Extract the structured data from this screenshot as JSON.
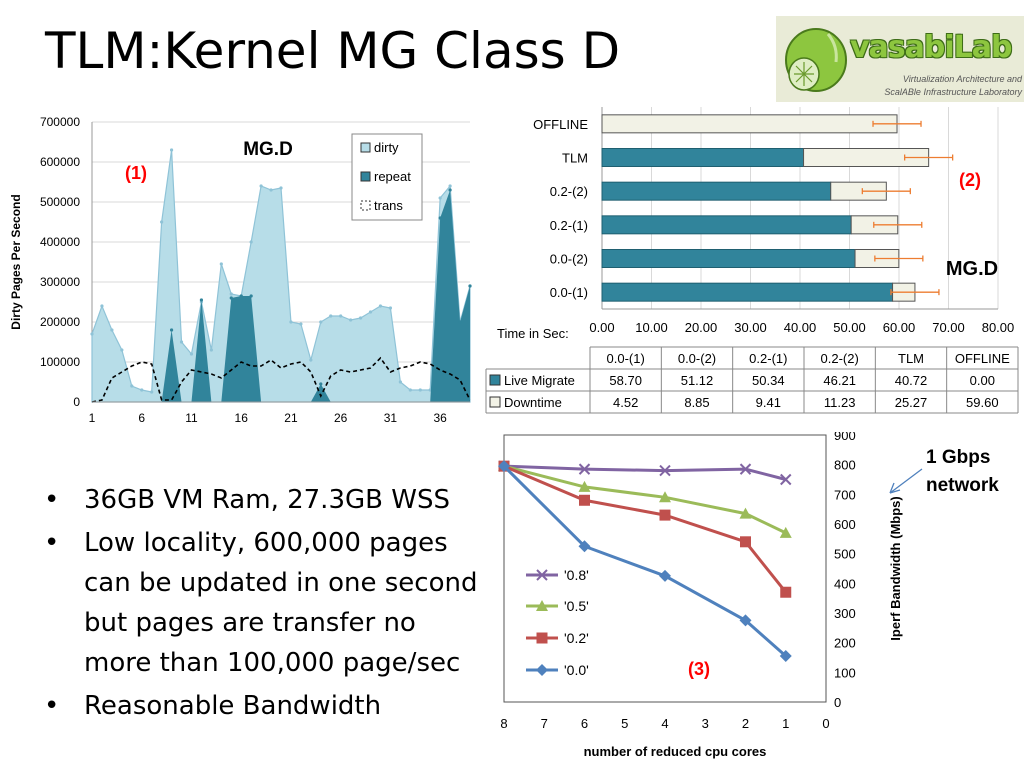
{
  "slide": {
    "title": "TLM:Kernel MG Class D",
    "logo": {
      "name": "vasabiLab",
      "line1": "Virtualization Architecture and",
      "line2": "ScalABle Infrastructure Laboratory"
    },
    "bullets": [
      "36GB VM Ram, 27.3GB WSS",
      "Low locality, 600,000 pages",
      "can be updated in one second",
      "but pages are transfer no",
      "more than 100,000 page/sec",
      "Reasonable Bandwidth"
    ],
    "network_note": [
      "1 Gbps",
      "network"
    ]
  },
  "colors": {
    "dirty": "#b7dde8",
    "dirty_line": "#8fc3d7",
    "repeat": "#31849b",
    "downtime": "#f2f2e6",
    "error_bar": "#ed7d31",
    "red_label": "#ff0000",
    "s08": "#8064a2",
    "s05": "#9bbb59",
    "s02": "#c0504d",
    "s00": "#4f81bd"
  },
  "chart_data": [
    {
      "type": "area",
      "title": "MG.D",
      "marker": "(1)",
      "ylabel": "Dirty Pages Per Second",
      "xlabel": "",
      "ylim": [
        0,
        700000
      ],
      "yticks": [
        "700000",
        "600000",
        "500000",
        "400000",
        "300000",
        "200000",
        "100000",
        "0"
      ],
      "xticks": [
        "1",
        "6",
        "11",
        "16",
        "21",
        "26",
        "31",
        "36"
      ],
      "legend_position": "top-right",
      "series": [
        {
          "name": "dirty",
          "values": [
            170000,
            240000,
            180000,
            130000,
            40000,
            30000,
            25000,
            450000,
            630000,
            150000,
            120000,
            250000,
            130000,
            345000,
            270000,
            265000,
            400000,
            540000,
            530000,
            535000,
            200000,
            195000,
            105000,
            200000,
            215000,
            215000,
            205000,
            210000,
            225000,
            240000,
            235000,
            50000,
            30000,
            30000,
            30000,
            510000,
            540000,
            200000,
            290000
          ]
        },
        {
          "name": "repeat",
          "values": [
            0,
            0,
            0,
            0,
            0,
            0,
            0,
            0,
            180000,
            0,
            0,
            255000,
            0,
            0,
            260000,
            265000,
            265000,
            0,
            0,
            0,
            0,
            0,
            0,
            45000,
            0,
            0,
            0,
            0,
            0,
            0,
            0,
            0,
            0,
            0,
            0,
            460000,
            530000,
            200000,
            290000
          ]
        },
        {
          "name": "trans",
          "values": [
            0,
            5000,
            60000,
            75000,
            90000,
            100000,
            95000,
            5000,
            5000,
            50000,
            80000,
            75000,
            70000,
            60000,
            80000,
            100000,
            90000,
            90000,
            105000,
            85000,
            95000,
            100000,
            75000,
            15000,
            65000,
            80000,
            75000,
            80000,
            85000,
            110000,
            75000,
            85000,
            90000,
            100000,
            95000,
            80000,
            70000,
            55000,
            5000
          ]
        }
      ]
    },
    {
      "type": "bar",
      "title": "MG.D",
      "marker": "(2)",
      "orientation": "horizontal-stacked",
      "xlabel": "Time in Sec:",
      "xlim": [
        0,
        80
      ],
      "xticks": [
        "0.00",
        "10.00",
        "20.00",
        "30.00",
        "40.00",
        "50.00",
        "60.00",
        "70.00",
        "80.00"
      ],
      "categories": [
        "0.0-(1)",
        "0.0-(2)",
        "0.2-(1)",
        "0.2-(2)",
        "TLM",
        "OFFLINE"
      ],
      "series": [
        {
          "name": "Live Migrate",
          "values": [
            58.7,
            51.12,
            50.34,
            46.21,
            40.72,
            0.0
          ],
          "labels": [
            "58.70",
            "51.12",
            "50.34",
            "46.21",
            "40.72",
            "0.00"
          ]
        },
        {
          "name": "Downtime",
          "values": [
            4.52,
            8.85,
            9.41,
            11.23,
            25.27,
            59.6
          ],
          "labels": [
            "4.52",
            "8.85",
            "9.41",
            "11.23",
            "25.27",
            "59.60"
          ]
        }
      ]
    },
    {
      "type": "line",
      "marker": "(3)",
      "xlabel": "number of reduced cpu cores",
      "ylabel": "Iperf Bandwidth (Mbps)",
      "ylim": [
        0,
        900
      ],
      "xlim": [
        8,
        0
      ],
      "xticks": [
        "8",
        "7",
        "6",
        "5",
        "4",
        "3",
        "2",
        "1",
        "0"
      ],
      "yticks": [
        "900",
        "800",
        "700",
        "600",
        "500",
        "400",
        "300",
        "200",
        "100",
        "0"
      ],
      "legend_position": "left",
      "x": [
        8,
        6,
        4,
        2,
        1
      ],
      "series": [
        {
          "name": "'0.8'",
          "values": [
            795,
            785,
            780,
            785,
            750
          ]
        },
        {
          "name": "'0.5'",
          "values": [
            795,
            725,
            690,
            635,
            570
          ]
        },
        {
          "name": "'0.2'",
          "values": [
            795,
            680,
            630,
            540,
            370
          ]
        },
        {
          "name": "'0.0'",
          "values": [
            795,
            525,
            425,
            275,
            155
          ]
        }
      ]
    }
  ]
}
